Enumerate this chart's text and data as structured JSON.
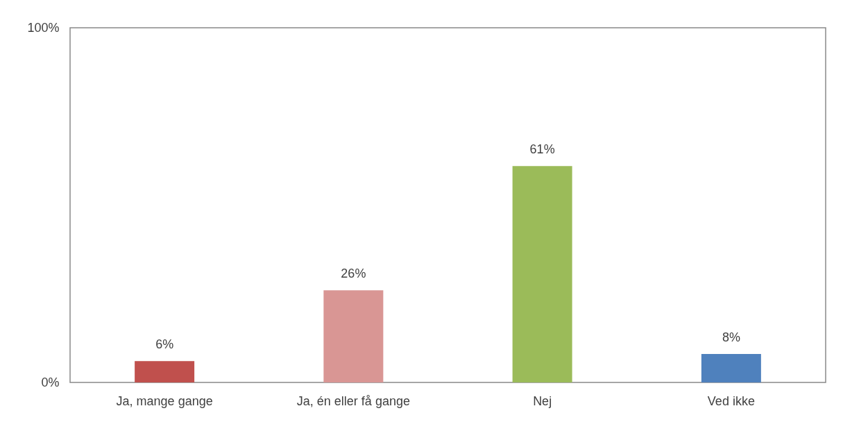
{
  "chart_data": {
    "type": "bar",
    "categories": [
      "Ja, mange gange",
      "Ja, én eller få gange",
      "Nej",
      "Ved ikke"
    ],
    "values": [
      6,
      26,
      61,
      8
    ],
    "colors": [
      "#c0504d",
      "#d99694",
      "#9bbb59",
      "#4f81bd"
    ],
    "value_labels": [
      "6%",
      "26%",
      "61%",
      "8%"
    ],
    "ylim": [
      0,
      100
    ],
    "yticks": [
      {
        "value": 0,
        "label": "0%"
      },
      {
        "value": 100,
        "label": "100%"
      }
    ]
  }
}
